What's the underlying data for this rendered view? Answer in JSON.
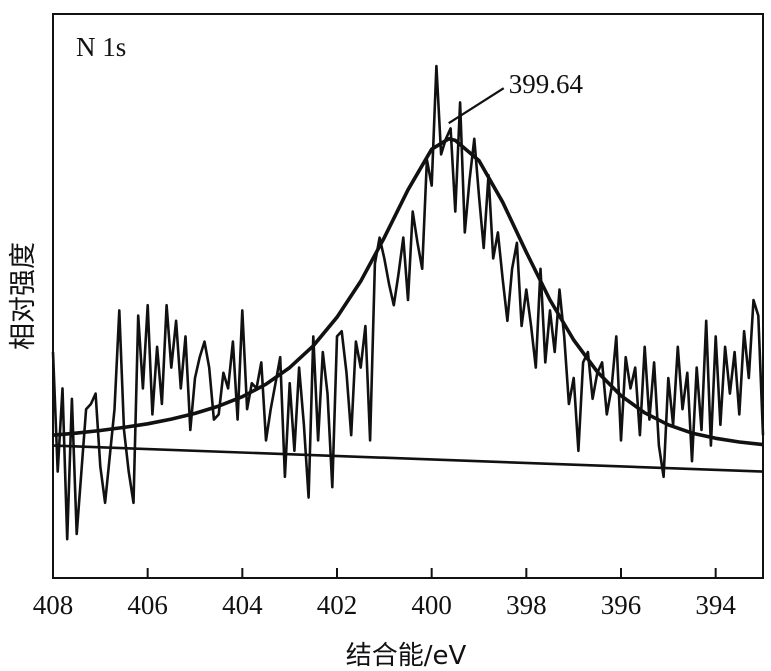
{
  "chart_data": {
    "type": "line",
    "panel_label": "N 1s",
    "ylabel": "相对强度",
    "xlabel": "结合能/eV",
    "xlim": [
      408,
      393
    ],
    "x_reversed": true,
    "ylim": [
      0,
      1.0
    ],
    "y_ticks_shown": false,
    "x_ticks": [
      408,
      406,
      404,
      402,
      400,
      398,
      396,
      394
    ],
    "x_tick_labels": [
      "408",
      "406",
      "404",
      "402",
      "400",
      "398",
      "396",
      "394"
    ],
    "grid": false,
    "annotation": {
      "text": "399.64",
      "x": 399.64,
      "y": 0.84
    },
    "series": [
      {
        "role": "raw",
        "x": [
          408.0,
          407.9,
          407.8,
          407.7,
          407.6,
          407.5,
          407.4,
          407.3,
          407.2,
          407.1,
          407.0,
          406.9,
          406.8,
          406.7,
          406.6,
          406.5,
          406.4,
          406.3,
          406.2,
          406.1,
          406.0,
          405.9,
          405.8,
          405.7,
          405.6,
          405.5,
          405.4,
          405.3,
          405.2,
          405.1,
          405.0,
          404.9,
          404.8,
          404.7,
          404.6,
          404.5,
          404.4,
          404.3,
          404.2,
          404.1,
          404.0,
          403.9,
          403.8,
          403.7,
          403.6,
          403.5,
          403.4,
          403.3,
          403.2,
          403.1,
          403.0,
          402.9,
          402.8,
          402.7,
          402.6,
          402.5,
          402.4,
          402.3,
          402.2,
          402.1,
          402.0,
          401.9,
          401.8,
          401.7,
          401.6,
          401.5,
          401.4,
          401.3,
          401.2,
          401.1,
          401.0,
          400.9,
          400.8,
          400.7,
          400.6,
          400.5,
          400.4,
          400.3,
          400.2,
          400.1,
          400.0,
          399.9,
          399.8,
          399.7,
          399.6,
          399.5,
          399.4,
          399.3,
          399.2,
          399.1,
          399.0,
          398.9,
          398.8,
          398.7,
          398.6,
          398.5,
          398.4,
          398.3,
          398.2,
          398.1,
          398.0,
          397.9,
          397.8,
          397.7,
          397.6,
          397.5,
          397.4,
          397.3,
          397.2,
          397.1,
          397.0,
          396.9,
          396.8,
          396.7,
          396.6,
          396.5,
          396.4,
          396.3,
          396.2,
          396.1,
          396.0,
          395.9,
          395.8,
          395.7,
          395.6,
          395.5,
          395.4,
          395.3,
          395.2,
          395.1,
          395.0,
          394.9,
          394.8,
          394.7,
          394.6,
          394.5,
          394.4,
          394.3,
          394.2,
          394.1,
          394.0,
          393.9,
          393.8,
          393.7,
          393.6,
          393.5,
          393.4,
          393.3,
          393.2,
          393.1,
          393.0
        ],
        "y": [
          0.4,
          0.17,
          0.33,
          0.04,
          0.31,
          0.05,
          0.17,
          0.29,
          0.3,
          0.32,
          0.18,
          0.11,
          0.2,
          0.29,
          0.48,
          0.25,
          0.17,
          0.11,
          0.47,
          0.33,
          0.49,
          0.28,
          0.41,
          0.3,
          0.49,
          0.37,
          0.46,
          0.33,
          0.43,
          0.25,
          0.35,
          0.39,
          0.42,
          0.37,
          0.27,
          0.28,
          0.36,
          0.33,
          0.42,
          0.27,
          0.48,
          0.29,
          0.34,
          0.33,
          0.38,
          0.23,
          0.29,
          0.34,
          0.39,
          0.16,
          0.34,
          0.21,
          0.37,
          0.26,
          0.12,
          0.43,
          0.23,
          0.4,
          0.32,
          0.14,
          0.43,
          0.44,
          0.36,
          0.24,
          0.42,
          0.37,
          0.45,
          0.23,
          0.57,
          0.62,
          0.58,
          0.53,
          0.49,
          0.55,
          0.62,
          0.5,
          0.67,
          0.61,
          0.56,
          0.77,
          0.72,
          0.95,
          0.78,
          0.81,
          0.83,
          0.67,
          0.88,
          0.63,
          0.73,
          0.81,
          0.7,
          0.6,
          0.74,
          0.58,
          0.63,
          0.54,
          0.46,
          0.56,
          0.61,
          0.45,
          0.52,
          0.45,
          0.37,
          0.56,
          0.38,
          0.48,
          0.4,
          0.52,
          0.43,
          0.3,
          0.35,
          0.21,
          0.38,
          0.4,
          0.31,
          0.36,
          0.38,
          0.28,
          0.33,
          0.43,
          0.23,
          0.39,
          0.33,
          0.37,
          0.24,
          0.41,
          0.27,
          0.38,
          0.22,
          0.16,
          0.35,
          0.26,
          0.41,
          0.29,
          0.36,
          0.19,
          0.37,
          0.25,
          0.46,
          0.22,
          0.43,
          0.26,
          0.41,
          0.32,
          0.4,
          0.28,
          0.44,
          0.35,
          0.5,
          0.47,
          0.24
        ]
      },
      {
        "role": "fit",
        "x": [
          408,
          407.5,
          407,
          406.5,
          406,
          405.5,
          405,
          404.5,
          404,
          403.5,
          403,
          402.5,
          402,
          401.5,
          401,
          400.5,
          400,
          399.64,
          399.5,
          399,
          398.5,
          398,
          397.5,
          397,
          396.5,
          396,
          395.5,
          395,
          394.5,
          394,
          393.5,
          393
        ],
        "y": [
          0.24,
          0.244,
          0.249,
          0.255,
          0.262,
          0.271,
          0.282,
          0.296,
          0.314,
          0.338,
          0.37,
          0.412,
          0.467,
          0.536,
          0.62,
          0.712,
          0.79,
          0.81,
          0.807,
          0.768,
          0.688,
          0.592,
          0.5,
          0.423,
          0.362,
          0.316,
          0.283,
          0.26,
          0.244,
          0.234,
          0.227,
          0.222
        ]
      },
      {
        "role": "background",
        "x": [
          408,
          393
        ],
        "y": [
          0.22,
          0.17
        ]
      }
    ]
  }
}
